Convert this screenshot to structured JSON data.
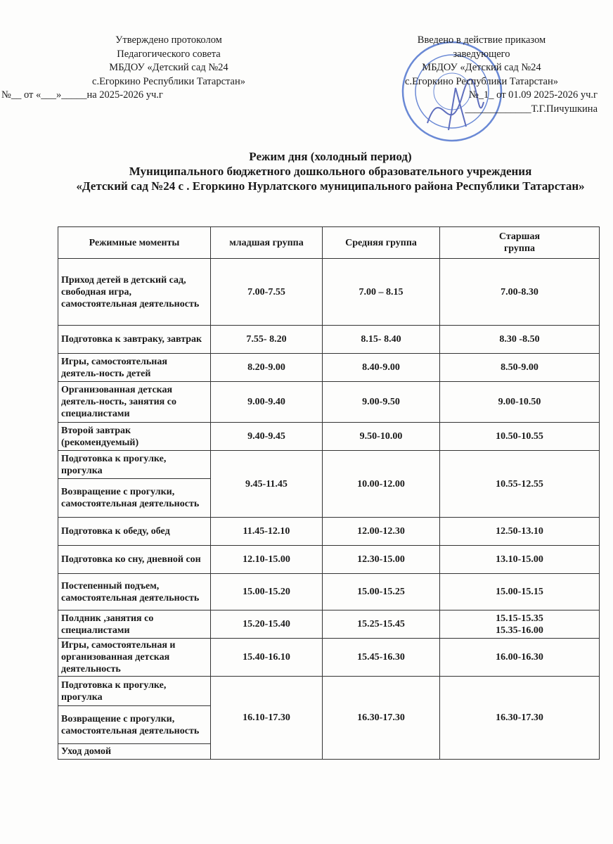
{
  "approved_block": {
    "lines": [
      "Утверждено  протоколом",
      "Педагогического совета",
      "МБДОУ «Детский сад №24",
      "с.Егоркино Республики Татарстан»"
    ],
    "number_line": "№__ от «___»_____на 2025-2026 уч.г"
  },
  "enacted_block": {
    "lines": [
      "Введено в действие приказом",
      "заведующего",
      "МБДОУ «Детский сад №24",
      "с.Егоркино  Республики Татарстан»"
    ],
    "number_line": "№_1_ от 01.09 2025-2026 уч.г",
    "signature_line": "_____________Т.Г.Пичушкина",
    "stamp_color": "#3a63c9"
  },
  "title": {
    "line1": "Режим дня (холодный период)",
    "line2": "Муниципального бюджетного дошкольного образовательного учреждения",
    "line3": "«Детский сад №24 с . Егоркино Нурлатского муниципального района Республики Татарстан»"
  },
  "table": {
    "headers": [
      "Режимные моменты",
      "младшая группа",
      "Средняя группа",
      "Старшая группа"
    ],
    "rows": [
      {
        "moment": "Приход детей в детский сад, свободная игра, самостоятельная деятельность",
        "times": [
          "7.00-7.55",
          "7.00 – 8.15",
          "7.00-8.30"
        ]
      },
      {
        "moment": "Подготовка к завтраку, завтрак",
        "times": [
          "7.55- 8.20",
          "8.15- 8.40",
          "8.30 -8.50"
        ]
      },
      {
        "moment": "Игры, самостоятельная деятель-ность  детей",
        "times": [
          "8.20-9.00",
          "8.40-9.00",
          "8.50-9.00"
        ]
      },
      {
        "moment": "Организованная детская деятель-ность,  занятия со специалистами",
        "times": [
          "9.00-9.40",
          "9.00-9.50",
          "9.00-10.50"
        ]
      },
      {
        "moment": "Второй завтрак (рекомендуемый)",
        "times": [
          "9.40-9.45",
          "9.50-10.00",
          "10.50-10.55"
        ]
      },
      {
        "moment": "Подготовка к прогулке, прогулка",
        "times": [
          "9.45-11.45",
          "10.00-12.00",
          "10.55-12.55"
        ]
      },
      {
        "moment": "Возвращение с прогулки, самостоятельная деятельность"
      },
      {
        "moment": "Подготовка к обеду, обед",
        "times": [
          "11.45-12.10",
          "12.00-12.30",
          "12.50-13.10"
        ]
      },
      {
        "moment": "Подготовка ко сну, дневной сон",
        "times": [
          "12.10-15.00",
          "12.30-15.00",
          "13.10-15.00"
        ]
      },
      {
        "moment": "Постепенный подъем, самостоятельная деятельность",
        "times": [
          "15.00-15.20",
          "15.00-15.25",
          "15.00-15.15"
        ]
      },
      {
        "moment": "Полдник ,занятия со специалистами",
        "times": [
          "15.20-15.40",
          "15.25-15.45",
          "15.15-15.35 15.35-16.00"
        ]
      },
      {
        "moment": "Игры, самостоятельная и организованная детская деятельность",
        "times": [
          "15.40-16.10",
          "15.45-16.30",
          "16.00-16.30"
        ]
      },
      {
        "moment": "Подготовка к прогулке, прогулка",
        "times": [
          "16.10-17.30",
          "16.30-17.30",
          "16.30-17.30"
        ]
      },
      {
        "moment": "Возвращение с прогулки, самостоятельная деятельность"
      },
      {
        "moment": "Уход домой"
      }
    ]
  }
}
